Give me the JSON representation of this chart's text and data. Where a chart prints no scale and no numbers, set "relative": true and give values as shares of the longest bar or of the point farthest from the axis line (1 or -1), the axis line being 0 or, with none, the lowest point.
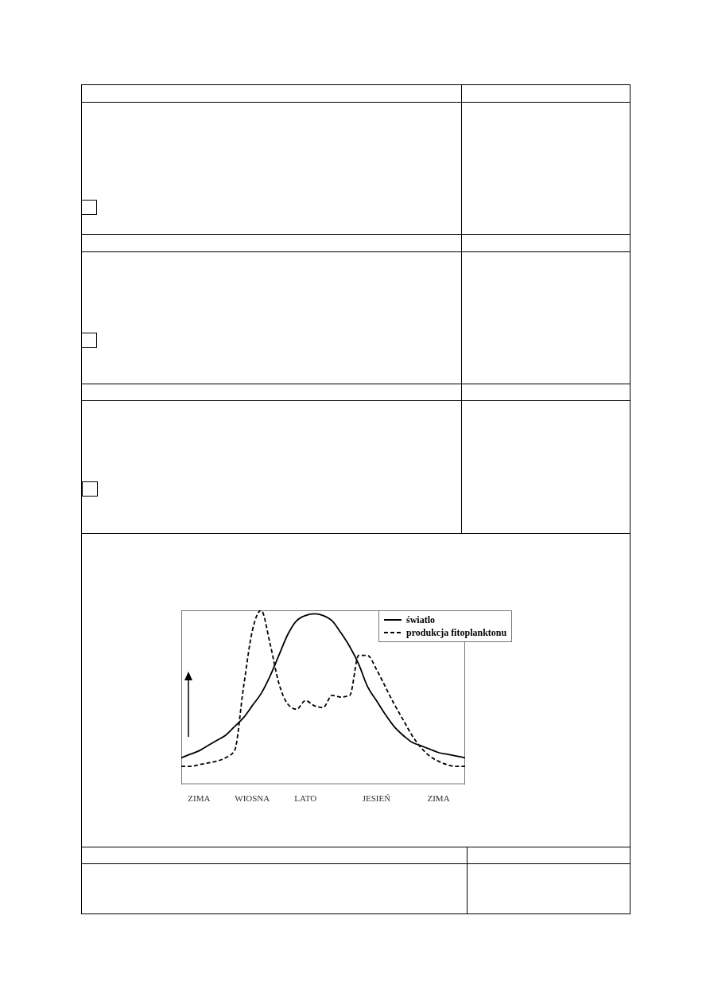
{
  "chart_data": {
    "type": "line",
    "relative": true,
    "categories": [
      null,
      null,
      "ZIMA",
      null,
      null,
      null,
      null,
      null,
      "WIOSNA",
      null,
      null,
      null,
      null,
      null,
      "LATO",
      null,
      null,
      null,
      null,
      null,
      null,
      null,
      "JESIEŃ",
      null,
      null,
      null,
      null,
      null,
      null,
      "ZIMA",
      null,
      null,
      null
    ],
    "legend": "top right",
    "marker": "none",
    "series": [
      {
        "name": "światlo",
        "color": "#000000",
        "line_style": "solid",
        "values": [
          0.15,
          0.17,
          0.19,
          0.22,
          0.25,
          0.28,
          0.33,
          0.38,
          0.45,
          0.52,
          0.62,
          0.74,
          0.86,
          0.94,
          0.97,
          0.98,
          0.97,
          0.94,
          0.87,
          0.79,
          0.69,
          0.56,
          0.48,
          0.4,
          0.33,
          0.28,
          0.24,
          0.22,
          0.2,
          0.18,
          0.17,
          0.16,
          0.15
        ]
      },
      {
        "name": "produkcja fitoplanktonu",
        "color": "#000000",
        "line_style": "dashed",
        "values": [
          0.1,
          0.1,
          0.11,
          0.12,
          0.13,
          0.15,
          0.19,
          0.55,
          0.88,
          1,
          0.81,
          0.58,
          0.46,
          0.43,
          0.48,
          0.45,
          0.44,
          0.51,
          0.5,
          0.51,
          0.74,
          0.74,
          0.66,
          0.56,
          0.46,
          0.37,
          0.28,
          0.21,
          0.16,
          0.13,
          0.11,
          0.1,
          0.1
        ]
      }
    ]
  }
}
